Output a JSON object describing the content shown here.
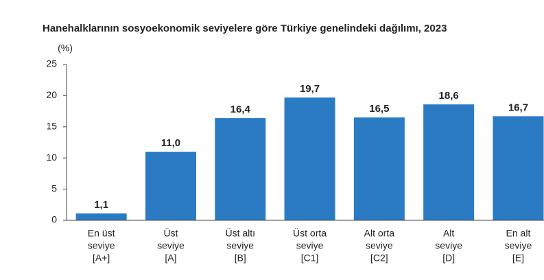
{
  "chart_data": {
    "type": "bar",
    "title": "Hanehalklarının sosyoekonomik seviyelere göre Türkiye genelindeki dağılımı, 2023",
    "y_unit": "(%)",
    "categories": [
      [
        "En üst",
        "seviye",
        "[A+]"
      ],
      [
        "Üst",
        "seviye",
        "[A]"
      ],
      [
        "Üst altı",
        "seviye",
        "[B]"
      ],
      [
        "Üst orta",
        "seviye",
        "[C1]"
      ],
      [
        "Alt orta",
        "seviye",
        "[C2]"
      ],
      [
        "Alt",
        "seviye",
        "[D]"
      ],
      [
        "En alt",
        "seviye",
        "[E]"
      ]
    ],
    "values": [
      1.1,
      11.0,
      16.4,
      19.7,
      16.5,
      18.6,
      16.7
    ],
    "value_labels": [
      "1,1",
      "11,0",
      "16,4",
      "19,7",
      "16,5",
      "18,6",
      "16,7"
    ],
    "color": "#2b7bc4",
    "ylim": [
      0,
      25
    ],
    "yticks": [
      0,
      5,
      10,
      15,
      20,
      25
    ]
  }
}
